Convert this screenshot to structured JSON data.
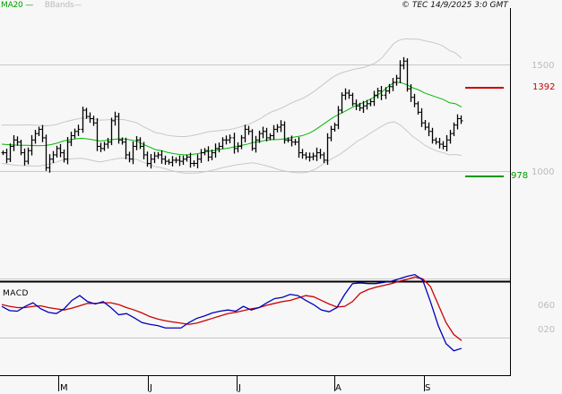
{
  "header": {
    "ma_label": "MA20",
    "bb_label": "BBands",
    "copyright": "© TEC 14/9/2025 3:0 GMT"
  },
  "price_axis": {
    "ticks": [
      {
        "label": "1500",
        "value": 1500
      },
      {
        "label": "1000",
        "value": 1000
      }
    ]
  },
  "levels": {
    "resistance": {
      "label": "1392",
      "value": 1392,
      "color": "#cc0000"
    },
    "support": {
      "label": "978",
      "value": 978,
      "color": "#009900"
    }
  },
  "macd": {
    "title": "MACD",
    "ticks": [
      {
        "label": "0.60",
        "display": "060"
      },
      {
        "label": "0.20",
        "display": "020"
      }
    ]
  },
  "time_axis": {
    "ticks": [
      {
        "label": "M",
        "x": 65
      },
      {
        "label": "J",
        "x": 165
      },
      {
        "label": "J",
        "x": 264
      },
      {
        "label": "A",
        "x": 373
      },
      {
        "label": "S",
        "x": 473
      }
    ]
  },
  "colors": {
    "ma20": "#00bb00",
    "bbands": "#c8c8c8",
    "bars": "#000000",
    "macd_line": "#0000bb",
    "signal_line": "#cc0000",
    "grid": "#c8c8c8"
  },
  "chart_data": [
    {
      "type": "ohlc",
      "title": "Price with MA20 and Bollinger Bands",
      "ylabel": "Price",
      "ylim": [
        700,
        1620
      ],
      "y_ticks": [
        1000,
        1500
      ],
      "x_ticks": [
        "M",
        "J",
        "J",
        "A",
        "S"
      ],
      "horizontal_levels": [
        {
          "name": "resistance",
          "value": 1392
        },
        {
          "name": "support",
          "value": 978
        }
      ],
      "series": [
        {
          "name": "Close (approx.)",
          "values": [
            1090,
            1060,
            1120,
            1150,
            1140,
            1090,
            1050,
            1100,
            1150,
            1180,
            1200,
            1160,
            1020,
            1060,
            1080,
            1110,
            1090,
            1060,
            1140,
            1170,
            1190,
            1200,
            1290,
            1260,
            1250,
            1230,
            1120,
            1110,
            1130,
            1140,
            1240,
            1260,
            1150,
            1140,
            1080,
            1060,
            1120,
            1150,
            1120,
            1080,
            1040,
            1060,
            1075,
            1080,
            1060,
            1050,
            1045,
            1055,
            1055,
            1050,
            1060,
            1070,
            1040,
            1040,
            1060,
            1090,
            1100,
            1070,
            1090,
            1110,
            1120,
            1150,
            1150,
            1160,
            1110,
            1120,
            1160,
            1200,
            1190,
            1110,
            1150,
            1180,
            1190,
            1160,
            1170,
            1200,
            1210,
            1220,
            1150,
            1150,
            1140,
            1140,
            1090,
            1080,
            1070,
            1070,
            1075,
            1090,
            1080,
            1055,
            1160,
            1200,
            1220,
            1290,
            1360,
            1370,
            1360,
            1320,
            1310,
            1300,
            1310,
            1320,
            1330,
            1360,
            1380,
            1360,
            1380,
            1400,
            1420,
            1440,
            1500,
            1520,
            1390,
            1350,
            1320,
            1280,
            1230,
            1210,
            1190,
            1150,
            1140,
            1130,
            1120,
            1150,
            1180,
            1220,
            1250,
            1240
          ]
        },
        {
          "name": "MA20",
          "values": [
            1130,
            1128,
            1126,
            1125,
            1125,
            1124,
            1123,
            1124,
            1128,
            1135,
            1145,
            1150,
            1155,
            1158,
            1155,
            1150,
            1145,
            1148,
            1152,
            1155,
            1155,
            1150,
            1145,
            1130,
            1118,
            1105,
            1100,
            1092,
            1086,
            1082,
            1080,
            1082,
            1086,
            1092,
            1098,
            1102,
            1108,
            1112,
            1118,
            1124,
            1130,
            1138,
            1142,
            1148,
            1152,
            1152,
            1155,
            1160,
            1165,
            1170,
            1180,
            1195,
            1215,
            1235,
            1255,
            1270,
            1285,
            1300,
            1315,
            1325,
            1340,
            1355,
            1375,
            1400,
            1420,
            1420,
            1410,
            1395,
            1385,
            1370,
            1360,
            1350,
            1340,
            1325,
            1320,
            1305
          ]
        }
      ]
    },
    {
      "type": "line",
      "title": "MACD",
      "y_ticks": [
        "0.60",
        "0.20"
      ],
      "series": [
        {
          "name": "MACD",
          "color": "#0000bb",
          "values": [
            0.52,
            0.45,
            0.44,
            0.52,
            0.58,
            0.48,
            0.42,
            0.4,
            0.48,
            0.62,
            0.7,
            0.6,
            0.56,
            0.6,
            0.5,
            0.38,
            0.4,
            0.33,
            0.25,
            0.22,
            0.2,
            0.16,
            0.16,
            0.16,
            0.25,
            0.32,
            0.36,
            0.41,
            0.44,
            0.46,
            0.44,
            0.52,
            0.46,
            0.5,
            0.58,
            0.65,
            0.67,
            0.72,
            0.7,
            0.62,
            0.55,
            0.46,
            0.43,
            0.5,
            0.72,
            0.9,
            0.91,
            0.9,
            0.9,
            0.92,
            0.94,
            0.98,
            1.02,
            1.05,
            0.96,
            0.6,
            0.2,
            -0.1,
            -0.22,
            -0.18
          ]
        },
        {
          "name": "Signal",
          "color": "#cc0000",
          "values": [
            0.55,
            0.52,
            0.5,
            0.5,
            0.52,
            0.53,
            0.5,
            0.48,
            0.46,
            0.49,
            0.53,
            0.57,
            0.57,
            0.58,
            0.58,
            0.55,
            0.5,
            0.46,
            0.41,
            0.35,
            0.31,
            0.28,
            0.26,
            0.24,
            0.22,
            0.24,
            0.28,
            0.32,
            0.36,
            0.4,
            0.42,
            0.45,
            0.48,
            0.5,
            0.54,
            0.57,
            0.6,
            0.62,
            0.66,
            0.7,
            0.68,
            0.62,
            0.56,
            0.51,
            0.52,
            0.6,
            0.74,
            0.8,
            0.84,
            0.87,
            0.9,
            0.94,
            0.97,
            1.01,
            0.98,
            0.85,
            0.55,
            0.25,
            0.05,
            -0.05
          ]
        }
      ]
    }
  ]
}
